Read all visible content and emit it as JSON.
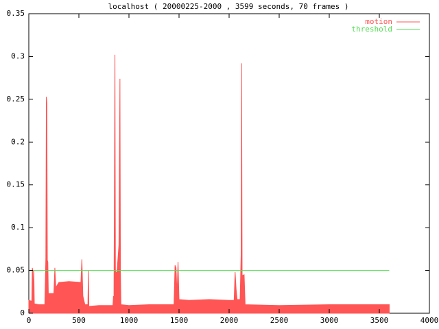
{
  "chart_data": {
    "type": "line",
    "title": "localhost ( 20000225-2000 , 3599 seconds, 70 frames )",
    "xlim": [
      0,
      4000
    ],
    "xticks": [
      0,
      500,
      1000,
      1500,
      2000,
      2500,
      3000,
      3500,
      4000
    ],
    "ylim": [
      0,
      0.35
    ],
    "yticks": [
      0,
      0.05,
      0.1,
      0.15,
      0.2,
      0.25,
      0.3,
      0.35
    ],
    "legend": "top-right",
    "series": [
      {
        "name": "motion",
        "color": "#ff5555",
        "fill": true,
        "x": [
          0,
          30,
          35,
          40,
          45,
          50,
          55,
          100,
          160,
          170,
          175,
          180,
          185,
          190,
          195,
          250,
          260,
          270,
          300,
          400,
          520,
          530,
          540,
          560,
          590,
          595,
          600,
          700,
          840,
          845,
          850,
          860,
          865,
          880,
          900,
          910,
          915,
          920,
          1000,
          1200,
          1450,
          1460,
          1470,
          1480,
          1490,
          1500,
          1600,
          1800,
          2000,
          2050,
          2060,
          2070,
          2080,
          2110,
          2120,
          2125,
          2130,
          2150,
          2160,
          2500,
          3000,
          3599
        ],
        "values": [
          0.015,
          0.014,
          0.053,
          0.05,
          0.012,
          0.05,
          0.011,
          0.01,
          0.01,
          0.065,
          0.253,
          0.246,
          0.062,
          0.06,
          0.023,
          0.023,
          0.053,
          0.03,
          0.036,
          0.037,
          0.036,
          0.063,
          0.02,
          0.01,
          0.01,
          0.05,
          0.008,
          0.009,
          0.009,
          0.02,
          0.012,
          0.302,
          0.049,
          0.047,
          0.08,
          0.274,
          0.048,
          0.01,
          0.009,
          0.01,
          0.01,
          0.056,
          0.053,
          0.022,
          0.06,
          0.016,
          0.015,
          0.016,
          0.015,
          0.015,
          0.048,
          0.028,
          0.016,
          0.016,
          0.069,
          0.292,
          0.044,
          0.045,
          0.01,
          0.009,
          0.01,
          0.01
        ]
      },
      {
        "name": "threshold",
        "color": "#55dd55",
        "fill": false,
        "x": [
          0,
          3599
        ],
        "values": [
          0.05,
          0.05
        ]
      }
    ]
  }
}
